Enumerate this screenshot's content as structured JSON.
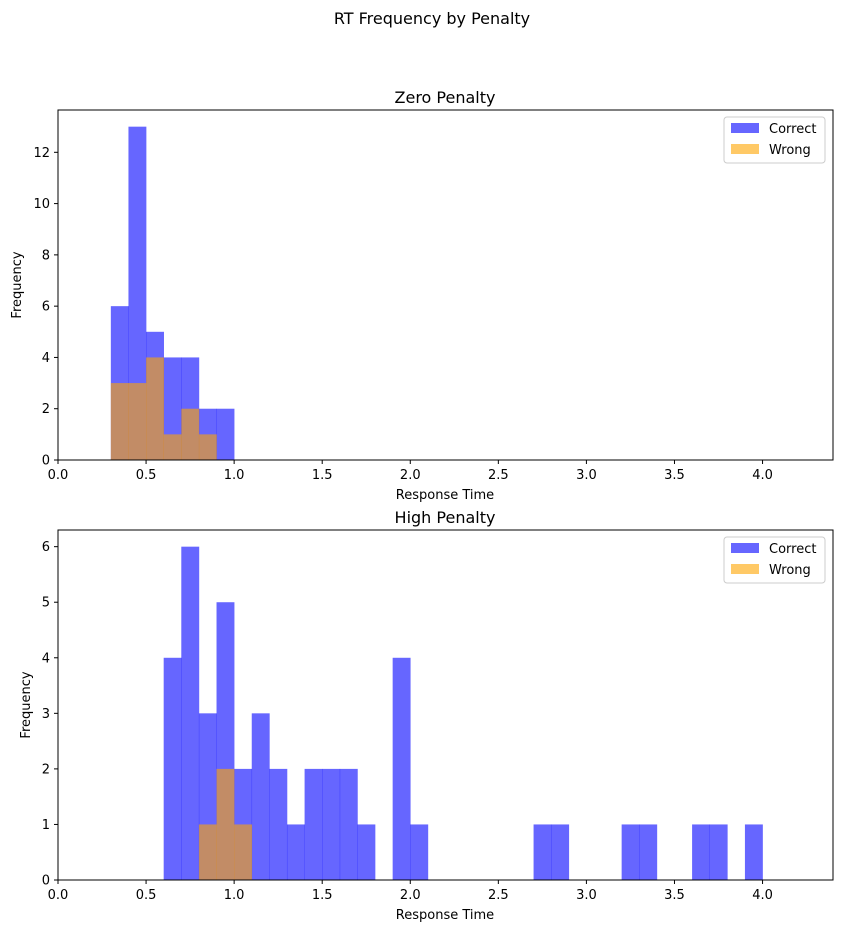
{
  "figure": {
    "suptitle": "RT Frequency by Penalty"
  },
  "colors": {
    "correct": "#0000ff",
    "wrong": "#ffa500",
    "correct_alpha": 0.6,
    "wrong_alpha": 0.6,
    "overlap": "#c08a66"
  },
  "chart_data": [
    {
      "type": "bar",
      "title": "Zero Penalty",
      "xlabel": "Response Time",
      "ylabel": "Frequency",
      "xlim": [
        0,
        4.4
      ],
      "ylim": [
        0,
        13.65
      ],
      "xticks": [
        "0.0",
        "0.5",
        "1.0",
        "1.5",
        "2.0",
        "2.5",
        "3.0",
        "3.5",
        "4.0"
      ],
      "yticks": [
        "0",
        "2",
        "4",
        "6",
        "8",
        "10",
        "12"
      ],
      "ytick_values": [
        0,
        2,
        4,
        6,
        8,
        10,
        12
      ],
      "bin_width": 0.1,
      "legend": {
        "position": "top-right",
        "entries": [
          "Correct",
          "Wrong"
        ]
      },
      "series": [
        {
          "name": "Correct",
          "bins": [
            {
              "x0": 0.3,
              "count": 6
            },
            {
              "x0": 0.4,
              "count": 13
            },
            {
              "x0": 0.5,
              "count": 5
            },
            {
              "x0": 0.6,
              "count": 4
            },
            {
              "x0": 0.7,
              "count": 4
            },
            {
              "x0": 0.8,
              "count": 2
            },
            {
              "x0": 0.9,
              "count": 2
            }
          ]
        },
        {
          "name": "Wrong",
          "bins": [
            {
              "x0": 0.3,
              "count": 3
            },
            {
              "x0": 0.4,
              "count": 3
            },
            {
              "x0": 0.5,
              "count": 4
            },
            {
              "x0": 0.6,
              "count": 1
            },
            {
              "x0": 0.7,
              "count": 2
            },
            {
              "x0": 0.8,
              "count": 1
            }
          ]
        }
      ]
    },
    {
      "type": "bar",
      "title": "High Penalty",
      "xlabel": "Response Time",
      "ylabel": "Frequency",
      "xlim": [
        0,
        4.4
      ],
      "ylim": [
        0,
        6.3
      ],
      "xticks": [
        "0.0",
        "0.5",
        "1.0",
        "1.5",
        "2.0",
        "2.5",
        "3.0",
        "3.5",
        "4.0"
      ],
      "yticks": [
        "0",
        "1",
        "2",
        "3",
        "4",
        "5",
        "6"
      ],
      "ytick_values": [
        0,
        1,
        2,
        3,
        4,
        5,
        6
      ],
      "bin_width": 0.1,
      "legend": {
        "position": "top-right",
        "entries": [
          "Correct",
          "Wrong"
        ]
      },
      "series": [
        {
          "name": "Correct",
          "bins": [
            {
              "x0": 0.6,
              "count": 4
            },
            {
              "x0": 0.7,
              "count": 6
            },
            {
              "x0": 0.8,
              "count": 3
            },
            {
              "x0": 0.9,
              "count": 5
            },
            {
              "x0": 1.0,
              "count": 2
            },
            {
              "x0": 1.1,
              "count": 3
            },
            {
              "x0": 1.2,
              "count": 2
            },
            {
              "x0": 1.3,
              "count": 1
            },
            {
              "x0": 1.4,
              "count": 2
            },
            {
              "x0": 1.5,
              "count": 2
            },
            {
              "x0": 1.6,
              "count": 2
            },
            {
              "x0": 1.7,
              "count": 1
            },
            {
              "x0": 1.9,
              "count": 4
            },
            {
              "x0": 2.0,
              "count": 1
            },
            {
              "x0": 2.7,
              "count": 1
            },
            {
              "x0": 2.8,
              "count": 1
            },
            {
              "x0": 3.2,
              "count": 1
            },
            {
              "x0": 3.3,
              "count": 1
            },
            {
              "x0": 3.6,
              "count": 1
            },
            {
              "x0": 3.7,
              "count": 1
            },
            {
              "x0": 3.9,
              "count": 1
            }
          ]
        },
        {
          "name": "Wrong",
          "bins": [
            {
              "x0": 0.8,
              "count": 1
            },
            {
              "x0": 0.9,
              "count": 2
            },
            {
              "x0": 1.0,
              "count": 1
            }
          ]
        }
      ]
    }
  ]
}
